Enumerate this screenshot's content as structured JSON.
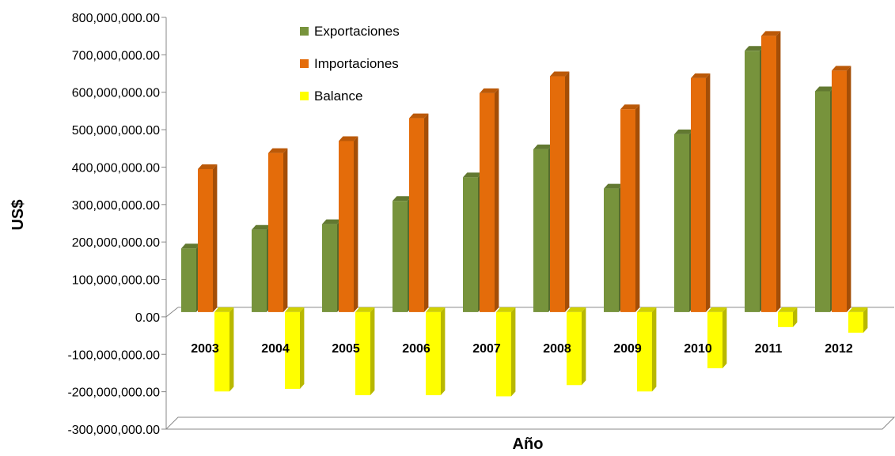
{
  "chart_data": {
    "type": "bar",
    "title": "",
    "xlabel": "Año",
    "ylabel": "US$",
    "ylim": [
      -300000000,
      800000000
    ],
    "yticks": [
      -300000000,
      -200000000,
      -100000000,
      0,
      100000000,
      200000000,
      300000000,
      400000000,
      500000000,
      600000000,
      700000000,
      800000000
    ],
    "ytick_labels": [
      "-300,000,000.00",
      "-200,000,000.00",
      "-100,000,000.00",
      "0.00",
      "100,000,000.00",
      "200,000,000.00",
      "300,000,000.00",
      "400,000,000.00",
      "500,000,000.00",
      "600,000,000.00",
      "700,000,000.00",
      "800,000,000.00"
    ],
    "categories": [
      "2003",
      "2004",
      "2005",
      "2006",
      "2007",
      "2008",
      "2009",
      "2010",
      "2011",
      "2012"
    ],
    "series": [
      {
        "name": "Exportaciones",
        "color": "#77933C",
        "values": [
          170000000,
          220000000,
          235000000,
          297000000,
          360000000,
          435000000,
          330000000,
          475000000,
          698000000,
          590000000
        ]
      },
      {
        "name": "Importaciones",
        "color": "#E46C0A",
        "values": [
          382000000,
          425000000,
          457000000,
          518000000,
          585000000,
          630000000,
          542000000,
          625000000,
          738000000,
          645000000
        ]
      },
      {
        "name": "Balance",
        "color": "#FFFF00",
        "values": [
          -212000000,
          -205000000,
          -222000000,
          -222000000,
          -225000000,
          -195000000,
          -212000000,
          -150000000,
          -40000000,
          -55000000
        ]
      }
    ],
    "legend_position": "top-center",
    "grid": false,
    "style": "3d-column"
  }
}
